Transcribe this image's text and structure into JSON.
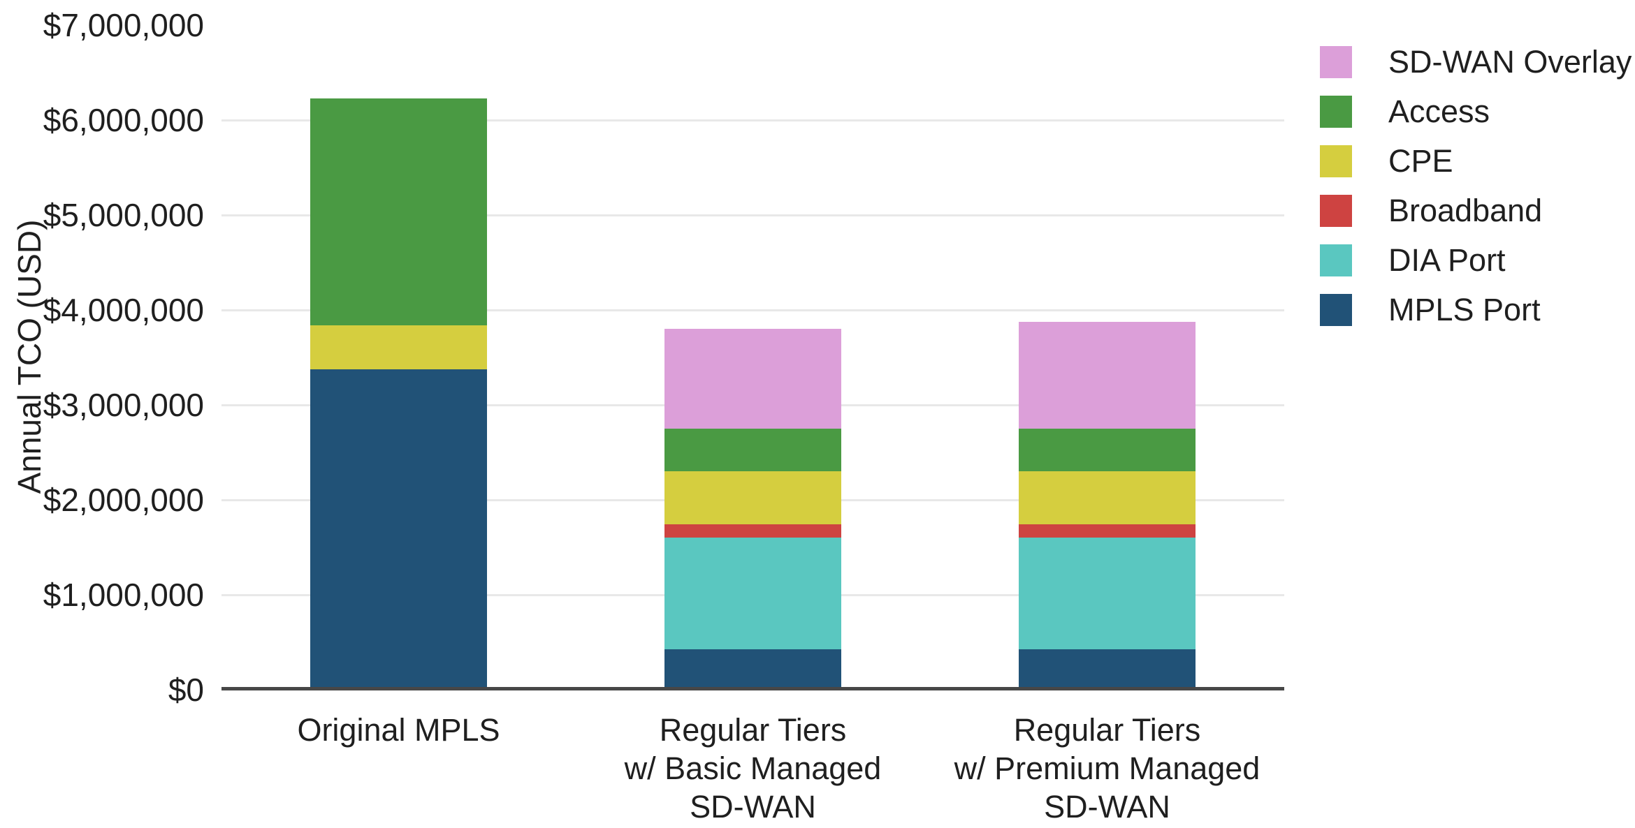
{
  "chart_data": {
    "type": "bar",
    "stacked": true,
    "title": "",
    "xlabel": "",
    "ylabel": "Annual TCO (USD)",
    "ylim": [
      0,
      7000000
    ],
    "ytick_step": 1000000,
    "ytick_labels": [
      "$0",
      "$1,000,000",
      "$2,000,000",
      "$3,000,000",
      "$4,000,000",
      "$5,000,000",
      "$6,000,000",
      "$7,000,000"
    ],
    "grid_values": [
      1000000,
      2000000,
      3000000,
      4000000,
      5000000,
      6000000
    ],
    "grid": true,
    "legend_position": "right",
    "categories": [
      "Original MPLS",
      "Regular Tiers\nw/ Basic Managed\nSD-WAN",
      "Regular Tiers\nw/ Premium Managed\nSD-WAN"
    ],
    "series": [
      {
        "name": "MPLS Port",
        "color": "#215277",
        "values": [
          3375000,
          430000,
          430000
        ]
      },
      {
        "name": "DIA Port",
        "color": "#5AC7C0",
        "values": [
          0,
          1175000,
          1175000
        ]
      },
      {
        "name": "Broadband",
        "color": "#CE4341",
        "values": [
          0,
          140000,
          140000
        ]
      },
      {
        "name": "CPE",
        "color": "#D5CE3F",
        "values": [
          465000,
          560000,
          560000
        ]
      },
      {
        "name": "Access",
        "color": "#4A9A43",
        "values": [
          2390000,
          445000,
          445000
        ]
      },
      {
        "name": "SD-WAN Overlay",
        "color": "#DC9FD9",
        "values": [
          0,
          1055000,
          1125000
        ]
      }
    ],
    "totals": [
      6230000,
      3805000,
      3875000
    ],
    "legend_order": [
      "SD-WAN Overlay",
      "Access",
      "CPE",
      "Broadband",
      "DIA Port",
      "MPLS Port"
    ],
    "colors": {
      "background": "#FFFFFF",
      "gridline": "#E8E8E8",
      "axis_line": "#474747",
      "text": "#1F1F1F"
    }
  }
}
